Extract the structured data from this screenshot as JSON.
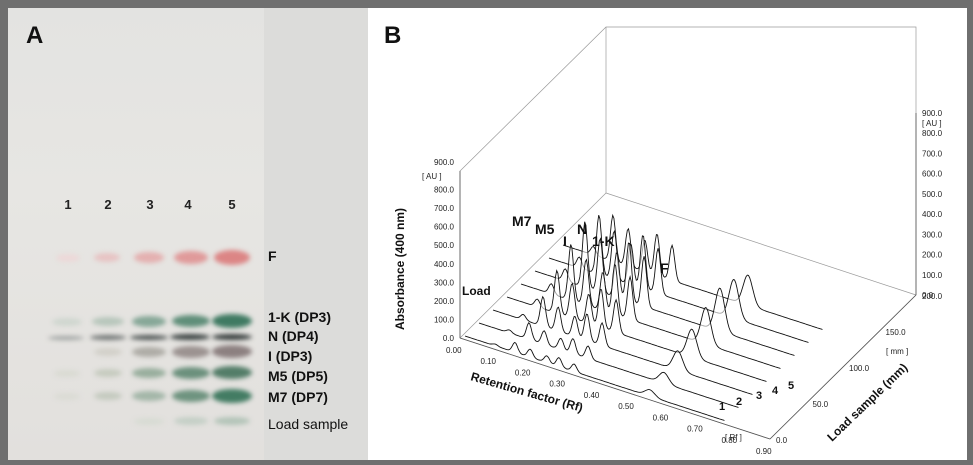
{
  "panel_a": {
    "letter": "A",
    "lanes": [
      "1",
      "2",
      "3",
      "4",
      "5"
    ],
    "band_labels": {
      "f": "F",
      "k1": "1-K (DP3)",
      "n": "N  (DP4)",
      "i": "I    (DP3)",
      "m5": "M5 (DP5)",
      "m7": "M7 (DP7)",
      "load": "Load sample"
    },
    "colors": {
      "fructose": "#e08c8c",
      "oligo": "#3f7a62"
    }
  },
  "panel_b": {
    "letter": "B",
    "y_title": "Absorbance (400 nm)",
    "x_title": "Retention factor (Rf)",
    "z_title": "Load sample  (mm)",
    "y_unit": "[ AU ]",
    "x_unit": "[ Rf ]",
    "z_unit": "[ mm ]",
    "y_ticks": [
      "0.0",
      "100.0",
      "200.0",
      "300.0",
      "400.0",
      "500.0",
      "600.0",
      "700.0",
      "800.0",
      "900.0"
    ],
    "x_ticks": [
      "0.00",
      "0.10",
      "0.20",
      "0.30",
      "0.40",
      "0.50",
      "0.60",
      "0.70",
      "0.80",
      "0.90"
    ],
    "z_ticks": [
      "0.0",
      "50.0",
      "100.0",
      "150.0",
      "200.0"
    ],
    "peak_labels": {
      "m7": "M7",
      "m5": "M5",
      "i": "I",
      "n": "N",
      "k1": "1-K",
      "f": "F",
      "load": "Load"
    },
    "trace_labels": [
      "1",
      "2",
      "3",
      "4",
      "5"
    ]
  }
}
